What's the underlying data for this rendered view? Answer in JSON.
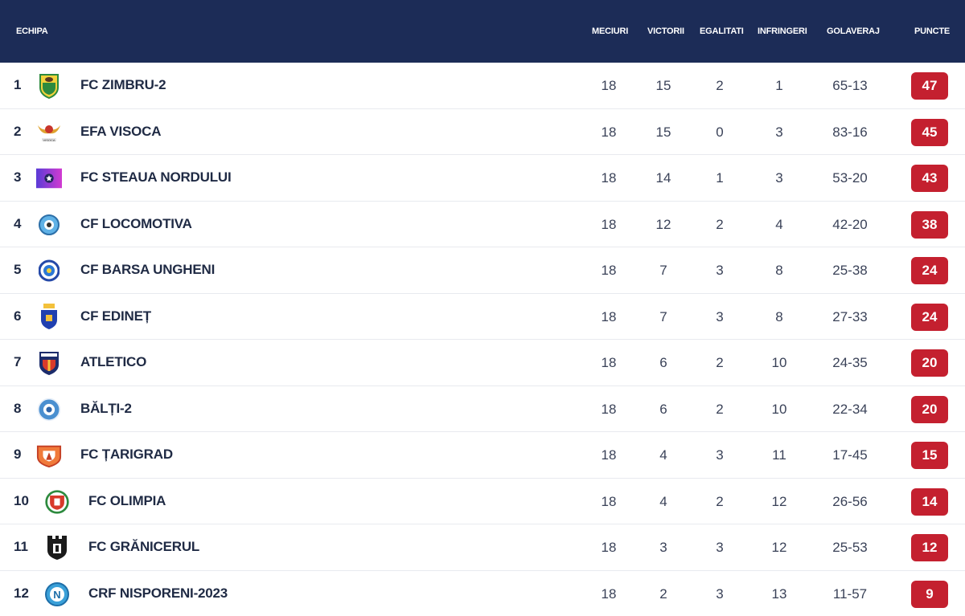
{
  "header": {
    "team": "ECHIPA",
    "played": "MECIURI",
    "wins": "VICTORII",
    "draws": "EGALITATI",
    "losses": "INFRINGERI",
    "goals": "GOLAVERAJ",
    "points": "PUNCTE"
  },
  "rows": [
    {
      "pos": "1",
      "name": "FC ZIMBRU-2",
      "played": "18",
      "wins": "15",
      "draws": "2",
      "losses": "1",
      "goals": "65-13",
      "points": "47",
      "logo": "zimbru-logo"
    },
    {
      "pos": "2",
      "name": "EFA VISOCA",
      "played": "18",
      "wins": "15",
      "draws": "0",
      "losses": "3",
      "goals": "83-16",
      "points": "45",
      "logo": "visoca-logo"
    },
    {
      "pos": "3",
      "name": "FC STEAUA NORDULUI",
      "played": "18",
      "wins": "14",
      "draws": "1",
      "losses": "3",
      "goals": "53-20",
      "points": "43",
      "logo": "steaua-logo"
    },
    {
      "pos": "4",
      "name": "CF LOCOMOTIVA",
      "played": "18",
      "wins": "12",
      "draws": "2",
      "losses": "4",
      "goals": "42-20",
      "points": "38",
      "logo": "locomotiva-logo"
    },
    {
      "pos": "5",
      "name": "CF BARSA UNGHENI",
      "played": "18",
      "wins": "7",
      "draws": "3",
      "losses": "8",
      "goals": "25-38",
      "points": "24",
      "logo": "barsa-logo"
    },
    {
      "pos": "6",
      "name": "CF EDINEȚ",
      "played": "18",
      "wins": "7",
      "draws": "3",
      "losses": "8",
      "goals": "27-33",
      "points": "24",
      "logo": "edinet-logo"
    },
    {
      "pos": "7",
      "name": "ATLETICO",
      "played": "18",
      "wins": "6",
      "draws": "2",
      "losses": "10",
      "goals": "24-35",
      "points": "20",
      "logo": "atletico-logo"
    },
    {
      "pos": "8",
      "name": "BĂLȚI-2",
      "played": "18",
      "wins": "6",
      "draws": "2",
      "losses": "10",
      "goals": "22-34",
      "points": "20",
      "logo": "balti-logo"
    },
    {
      "pos": "9",
      "name": "FC ȚARIGRAD",
      "played": "18",
      "wins": "4",
      "draws": "3",
      "losses": "11",
      "goals": "17-45",
      "points": "15",
      "logo": "tarigrad-logo"
    },
    {
      "pos": "10",
      "name": "FC OLIMPIA",
      "played": "18",
      "wins": "4",
      "draws": "2",
      "losses": "12",
      "goals": "26-56",
      "points": "14",
      "logo": "olimpia-logo"
    },
    {
      "pos": "11",
      "name": "FC GRĂNICERUL",
      "played": "18",
      "wins": "3",
      "draws": "3",
      "losses": "12",
      "goals": "25-53",
      "points": "12",
      "logo": "granicerul-logo"
    },
    {
      "pos": "12",
      "name": "CRF NISPORENI-2023",
      "played": "18",
      "wins": "2",
      "draws": "3",
      "losses": "13",
      "goals": "11-57",
      "points": "9",
      "logo": "nisporeni-logo"
    }
  ],
  "colors": {
    "header_bg": "#1c2c57",
    "points_badge": "#c4202f"
  }
}
